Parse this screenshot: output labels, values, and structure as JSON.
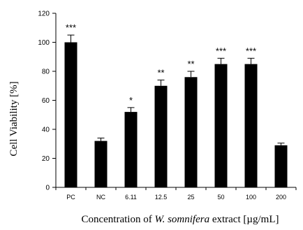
{
  "chart_data": {
    "type": "bar",
    "categories": [
      "PC",
      "NC",
      "6.11",
      "12.5",
      "25",
      "50",
      "100",
      "200"
    ],
    "values": [
      100,
      32,
      52,
      70,
      76,
      85,
      85,
      29
    ],
    "errors": [
      5,
      2,
      3,
      4,
      4,
      4,
      4,
      1.5
    ],
    "significance": [
      "***",
      "",
      "*",
      "**",
      "**",
      "***",
      "***",
      ""
    ],
    "ylabel": "Cell Viability [%]",
    "xlabel_prefix": "Concentration of ",
    "xlabel_italic": "W. somnifera",
    "xlabel_suffix": " extract [µg/mL]",
    "ylim": [
      0,
      120
    ],
    "yticks": [
      0,
      20,
      40,
      60,
      80,
      100,
      120
    ],
    "bar_color": "#000000",
    "grid": false,
    "legend": "none"
  }
}
